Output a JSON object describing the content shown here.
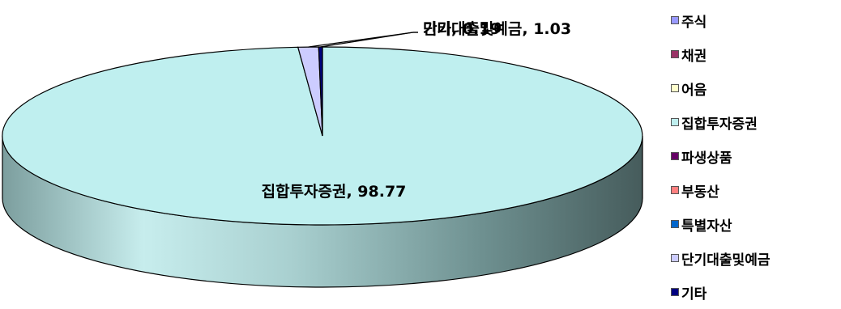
{
  "chart_data": {
    "type": "pie",
    "three_d": true,
    "start_angle_deg": 90,
    "legend_position": "right",
    "slices": [
      {
        "name": "주식",
        "value": 0,
        "color": "#9999FF"
      },
      {
        "name": "채권",
        "value": 0,
        "color": "#993366"
      },
      {
        "name": "어음",
        "value": 0,
        "color": "#FFFFCC"
      },
      {
        "name": "집합투자증권",
        "value": 98.77,
        "color": "#BFEFEF",
        "label": "집합투자증권, 98.77"
      },
      {
        "name": "파생상품",
        "value": 0,
        "color": "#660066"
      },
      {
        "name": "부동산",
        "value": 0,
        "color": "#FF8080"
      },
      {
        "name": "특별자산",
        "value": 0,
        "color": "#0066CC"
      },
      {
        "name": "단기대출및예금",
        "value": 1.03,
        "color": "#CCCCFF",
        "label": "단기대출및예금, 1.03"
      },
      {
        "name": "기타",
        "value": 0.19,
        "color": "#000080",
        "label": "기타, 0.19"
      }
    ]
  }
}
